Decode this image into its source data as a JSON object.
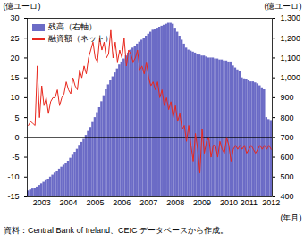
{
  "chart_data": {
    "type": "bar",
    "y_label": "(億ユーロ)",
    "y2_label": "(億ユーロ)",
    "x_label": "(年月)",
    "caption": "資料：Central Bank of Ireland、CEIC データベースから作成。",
    "categories": [
      null,
      null,
      null,
      null,
      null,
      null,
      "2003",
      null,
      null,
      null,
      null,
      null,
      null,
      null,
      null,
      null,
      null,
      null,
      "2004",
      null,
      null,
      null,
      null,
      null,
      null,
      null,
      null,
      null,
      null,
      null,
      "2005",
      null,
      null,
      null,
      null,
      null,
      null,
      null,
      null,
      null,
      null,
      null,
      "2006",
      null,
      null,
      null,
      null,
      null,
      null,
      null,
      null,
      null,
      null,
      null,
      "2007",
      null,
      null,
      null,
      null,
      null,
      null,
      null,
      null,
      null,
      null,
      null,
      "2008",
      null,
      null,
      null,
      null,
      null,
      null,
      null,
      null,
      null,
      null,
      null,
      "2009",
      null,
      null,
      null,
      null,
      null,
      null,
      null,
      null,
      null,
      null,
      null,
      "2010",
      null,
      null,
      null,
      null,
      null,
      null,
      null,
      null,
      "2011",
      null,
      null,
      null,
      null,
      null,
      null,
      null,
      null,
      null,
      "2012"
    ],
    "series": [
      {
        "name": "残高（右軸）",
        "type": "bar",
        "axis": "y2",
        "color": "#6b6bc6",
        "values": [
          430,
          435,
          440,
          445,
          450,
          458,
          466,
          474,
          482,
          490,
          500,
          510,
          520,
          530,
          540,
          550,
          560,
          570,
          580,
          595,
          610,
          625,
          640,
          660,
          675,
          690,
          710,
          730,
          750,
          775,
          800,
          825,
          850,
          880,
          910,
          940,
          965,
          985,
          1005,
          1025,
          1045,
          1065,
          1080,
          1095,
          1110,
          1125,
          1140,
          1150,
          1160,
          1170,
          1180,
          1190,
          1200,
          1210,
          1220,
          1230,
          1240,
          1245,
          1250,
          1255,
          1260,
          1265,
          1270,
          1275,
          1275,
          1270,
          1250,
          1230,
          1210,
          1190,
          1170,
          1150,
          1140,
          1135,
          1130,
          1125,
          1120,
          1115,
          1110,
          1110,
          1105,
          1100,
          1100,
          1100,
          1095,
          1095,
          1090,
          1090,
          1085,
          1085,
          1080,
          1080,
          1060,
          1050,
          1040,
          1030,
          1000,
          995,
          990,
          985,
          980,
          980,
          975,
          970,
          960,
          950,
          940,
          800,
          790,
          785
        ]
      },
      {
        "name": "融資額（ネット）",
        "type": "line",
        "color": "#e8281e",
        "values": [
          3,
          4,
          3.5,
          3,
          18,
          5,
          13,
          8,
          10,
          6,
          9,
          10,
          10,
          12,
          8,
          10,
          11,
          14,
          12,
          11,
          15,
          13,
          12,
          17,
          15,
          18,
          16,
          20,
          22,
          24,
          20,
          19,
          25,
          22,
          24,
          20,
          21,
          27,
          20,
          24,
          19,
          22,
          20,
          25,
          18,
          22,
          21,
          19,
          20,
          22,
          17,
          18,
          16,
          19,
          15,
          13,
          14,
          12,
          14,
          10,
          12,
          8,
          10,
          7,
          9,
          5,
          8,
          4,
          6,
          2,
          3,
          -1,
          3,
          -2,
          -6,
          1,
          -3,
          -9,
          2,
          -4,
          -1,
          0,
          -5,
          -2,
          -2,
          -5,
          -1,
          -3,
          -4,
          0,
          -2,
          -6,
          -3,
          -2,
          -3,
          -2,
          -3,
          -2,
          -4,
          -3,
          -2,
          -3,
          -4,
          -3,
          -2,
          -3,
          -2,
          -3,
          -2,
          -3
        ]
      }
    ],
    "ylim": [
      -15,
      30
    ],
    "yticks": [
      -15,
      -10,
      -5,
      0,
      5,
      10,
      15,
      20,
      25,
      30
    ],
    "y2lim": [
      400,
      1300
    ],
    "y2ticks": [
      400,
      500,
      600,
      700,
      800,
      900,
      {
        "value": 1000,
        "label": "1,000"
      },
      {
        "value": 1100,
        "label": "1,100"
      },
      {
        "value": 1200,
        "label": "1,200"
      },
      {
        "value": 1300,
        "label": "1,300"
      }
    ],
    "legend": "upper left",
    "grid": false
  }
}
